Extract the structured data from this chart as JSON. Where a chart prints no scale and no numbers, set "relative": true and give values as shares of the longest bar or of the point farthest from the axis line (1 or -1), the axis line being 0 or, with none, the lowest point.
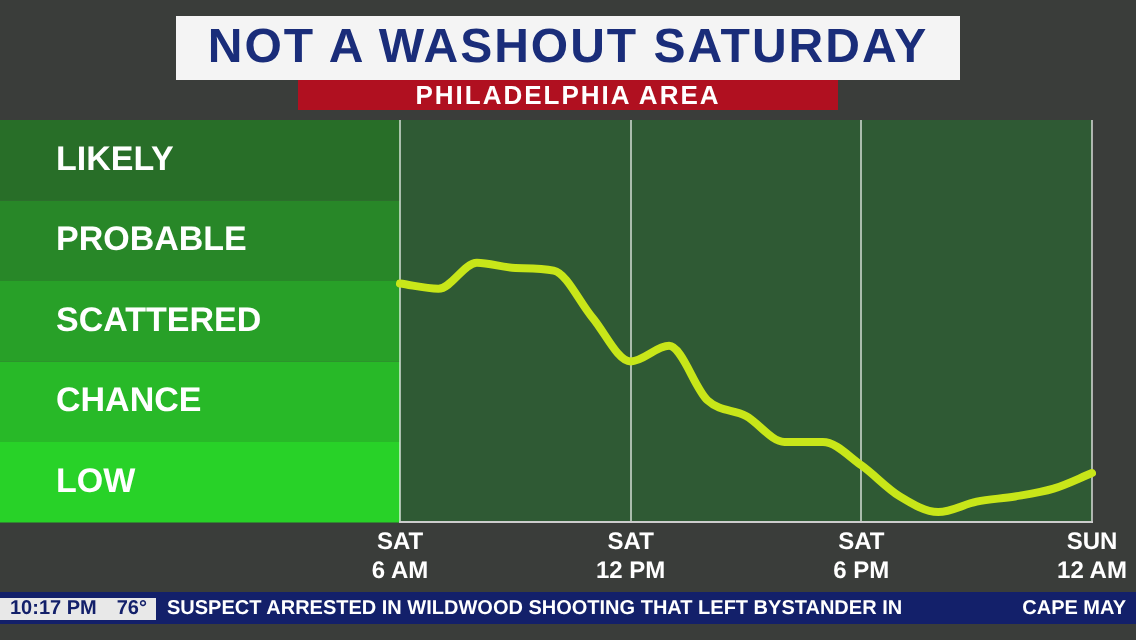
{
  "chart_data": {
    "type": "line",
    "title": "NOT A WASHOUT SATURDAY",
    "subtitle": "PHILADELPHIA AREA",
    "annotations": [
      "LIKELY",
      "PROBABLE",
      "SCATTERED",
      "CHANCE",
      "LOW",
      "10:17 PM",
      "76°",
      "SUSPECT ARRESTED IN WILDWOOD SHOOTING THAT LEFT BYSTANDER IN",
      "CAPE MAY"
    ],
    "categories": [
      "SAT 6 AM",
      null,
      null,
      null,
      null,
      null,
      "SAT 12 PM",
      null,
      null,
      null,
      null,
      null,
      "SAT 6 PM",
      null,
      null,
      null,
      null,
      null,
      "SUN 12 AM"
    ],
    "relative": true,
    "series": [
      {
        "color": "#c8e619",
        "values": [
          0.92,
          0.9,
          1,
          0.98,
          0.97,
          0.79,
          0.62,
          0.68,
          0.47,
          0.41,
          0.31,
          0.31,
          0.22,
          0.1,
          0.04,
          0.08,
          0.1,
          0.13,
          0.19
        ]
      }
    ],
    "grid": "x",
    "marker": "none",
    "line_style": "solid",
    "legend": false
  }
}
